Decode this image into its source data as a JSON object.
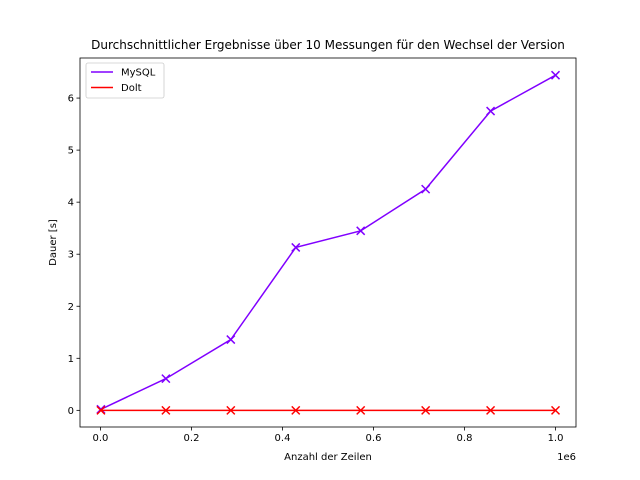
{
  "chart_data": {
    "type": "line",
    "title": "Durchschnittlicher Ergebnisse über 10 Messungen für den Wechsel der Version",
    "xlabel": "Anzahl der Zeilen",
    "ylabel": "Dauer [s]",
    "x_offset_label": "1e6",
    "x_scale": 1000000,
    "xlim": [
      -45000,
      1045000
    ],
    "ylim": [
      -0.32,
      6.77
    ],
    "x_ticks": [
      0,
      200000,
      400000,
      600000,
      800000,
      1000000
    ],
    "x_tick_labels": [
      "0.0",
      "0.2",
      "0.4",
      "0.6",
      "0.8",
      "1.0"
    ],
    "y_ticks": [
      0,
      1,
      2,
      3,
      4,
      5,
      6
    ],
    "y_tick_labels": [
      "0",
      "1",
      "2",
      "3",
      "4",
      "5",
      "6"
    ],
    "grid": false,
    "legend_position": "top-left",
    "x": [
      1000,
      143714,
      286429,
      429143,
      571857,
      714571,
      857286,
      1000000
    ],
    "series": [
      {
        "name": "MySQL",
        "color": "#8000ff",
        "marker": "x",
        "values": [
          0.02,
          0.61,
          1.36,
          3.13,
          3.45,
          4.25,
          5.75,
          6.44
        ]
      },
      {
        "name": "Dolt",
        "color": "#ff0000",
        "marker": "x",
        "values": [
          0.0,
          0.0,
          0.0,
          0.0,
          0.0,
          0.0,
          0.0,
          0.0
        ]
      }
    ]
  }
}
